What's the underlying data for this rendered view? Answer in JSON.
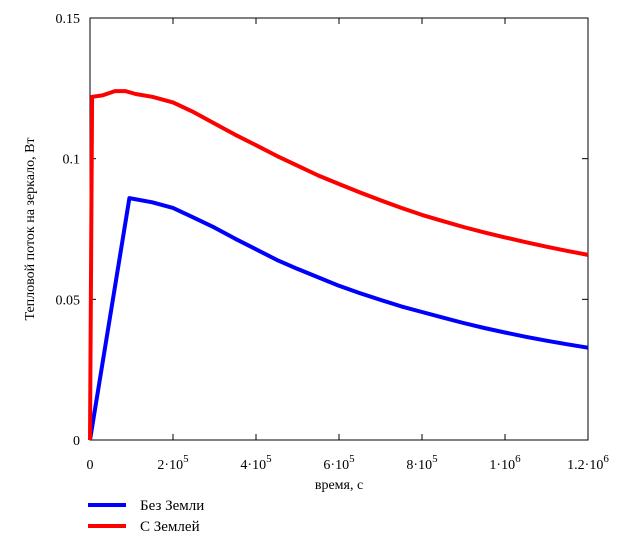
{
  "chart_data": {
    "type": "line",
    "title": "",
    "xlabel": "время, с",
    "ylabel": "Тепловой поток на зеркало, Вт",
    "xlim": [
      0,
      1200000
    ],
    "ylim": [
      0,
      0.15
    ],
    "grid": false,
    "legend_position": "bottom-left",
    "x_ticks": [
      {
        "value": 0,
        "mant": "0",
        "exp": ""
      },
      {
        "value": 200000,
        "mant": "2·10",
        "exp": "5"
      },
      {
        "value": 400000,
        "mant": "4·10",
        "exp": "5"
      },
      {
        "value": 600000,
        "mant": "6·10",
        "exp": "5"
      },
      {
        "value": 800000,
        "mant": "8·10",
        "exp": "5"
      },
      {
        "value": 1000000,
        "mant": "1·10",
        "exp": "6"
      },
      {
        "value": 1200000,
        "mant": "1.2·10",
        "exp": "6"
      }
    ],
    "y_ticks": [
      {
        "value": 0,
        "label": "0"
      },
      {
        "value": 0.05,
        "label": "0.05"
      },
      {
        "value": 0.1,
        "label": "0.1"
      },
      {
        "value": 0.15,
        "label": "0.15"
      }
    ],
    "series": [
      {
        "name": "Без Земли",
        "color": "#0000ff",
        "points": [
          [
            0,
            0
          ],
          [
            95000,
            0.086
          ],
          [
            150000,
            0.0845
          ],
          [
            200000,
            0.0825
          ],
          [
            250000,
            0.079
          ],
          [
            300000,
            0.0755
          ],
          [
            350000,
            0.0715
          ],
          [
            400000,
            0.0678
          ],
          [
            450000,
            0.064
          ],
          [
            500000,
            0.0608
          ],
          [
            550000,
            0.0578
          ],
          [
            600000,
            0.0548
          ],
          [
            650000,
            0.0522
          ],
          [
            700000,
            0.0498
          ],
          [
            750000,
            0.0475
          ],
          [
            800000,
            0.0455
          ],
          [
            850000,
            0.0435
          ],
          [
            900000,
            0.0416
          ],
          [
            950000,
            0.0398
          ],
          [
            1000000,
            0.0382
          ],
          [
            1050000,
            0.0367
          ],
          [
            1100000,
            0.0353
          ],
          [
            1150000,
            0.034
          ],
          [
            1200000,
            0.0328
          ]
        ]
      },
      {
        "name": "С Землей",
        "color": "#ff0000",
        "points": [
          [
            0,
            0
          ],
          [
            5000,
            0.122
          ],
          [
            30000,
            0.1225
          ],
          [
            60000,
            0.124
          ],
          [
            85000,
            0.124
          ],
          [
            110000,
            0.123
          ],
          [
            150000,
            0.122
          ],
          [
            200000,
            0.12
          ],
          [
            250000,
            0.1165
          ],
          [
            300000,
            0.1125
          ],
          [
            350000,
            0.1085
          ],
          [
            400000,
            0.1048
          ],
          [
            450000,
            0.101
          ],
          [
            500000,
            0.0975
          ],
          [
            550000,
            0.094
          ],
          [
            600000,
            0.091
          ],
          [
            650000,
            0.088
          ],
          [
            700000,
            0.0852
          ],
          [
            750000,
            0.0825
          ],
          [
            800000,
            0.08
          ],
          [
            850000,
            0.0778
          ],
          [
            900000,
            0.0757
          ],
          [
            950000,
            0.0738
          ],
          [
            1000000,
            0.072
          ],
          [
            1050000,
            0.0703
          ],
          [
            1100000,
            0.0687
          ],
          [
            1150000,
            0.0672
          ],
          [
            1200000,
            0.0658
          ]
        ]
      }
    ]
  }
}
